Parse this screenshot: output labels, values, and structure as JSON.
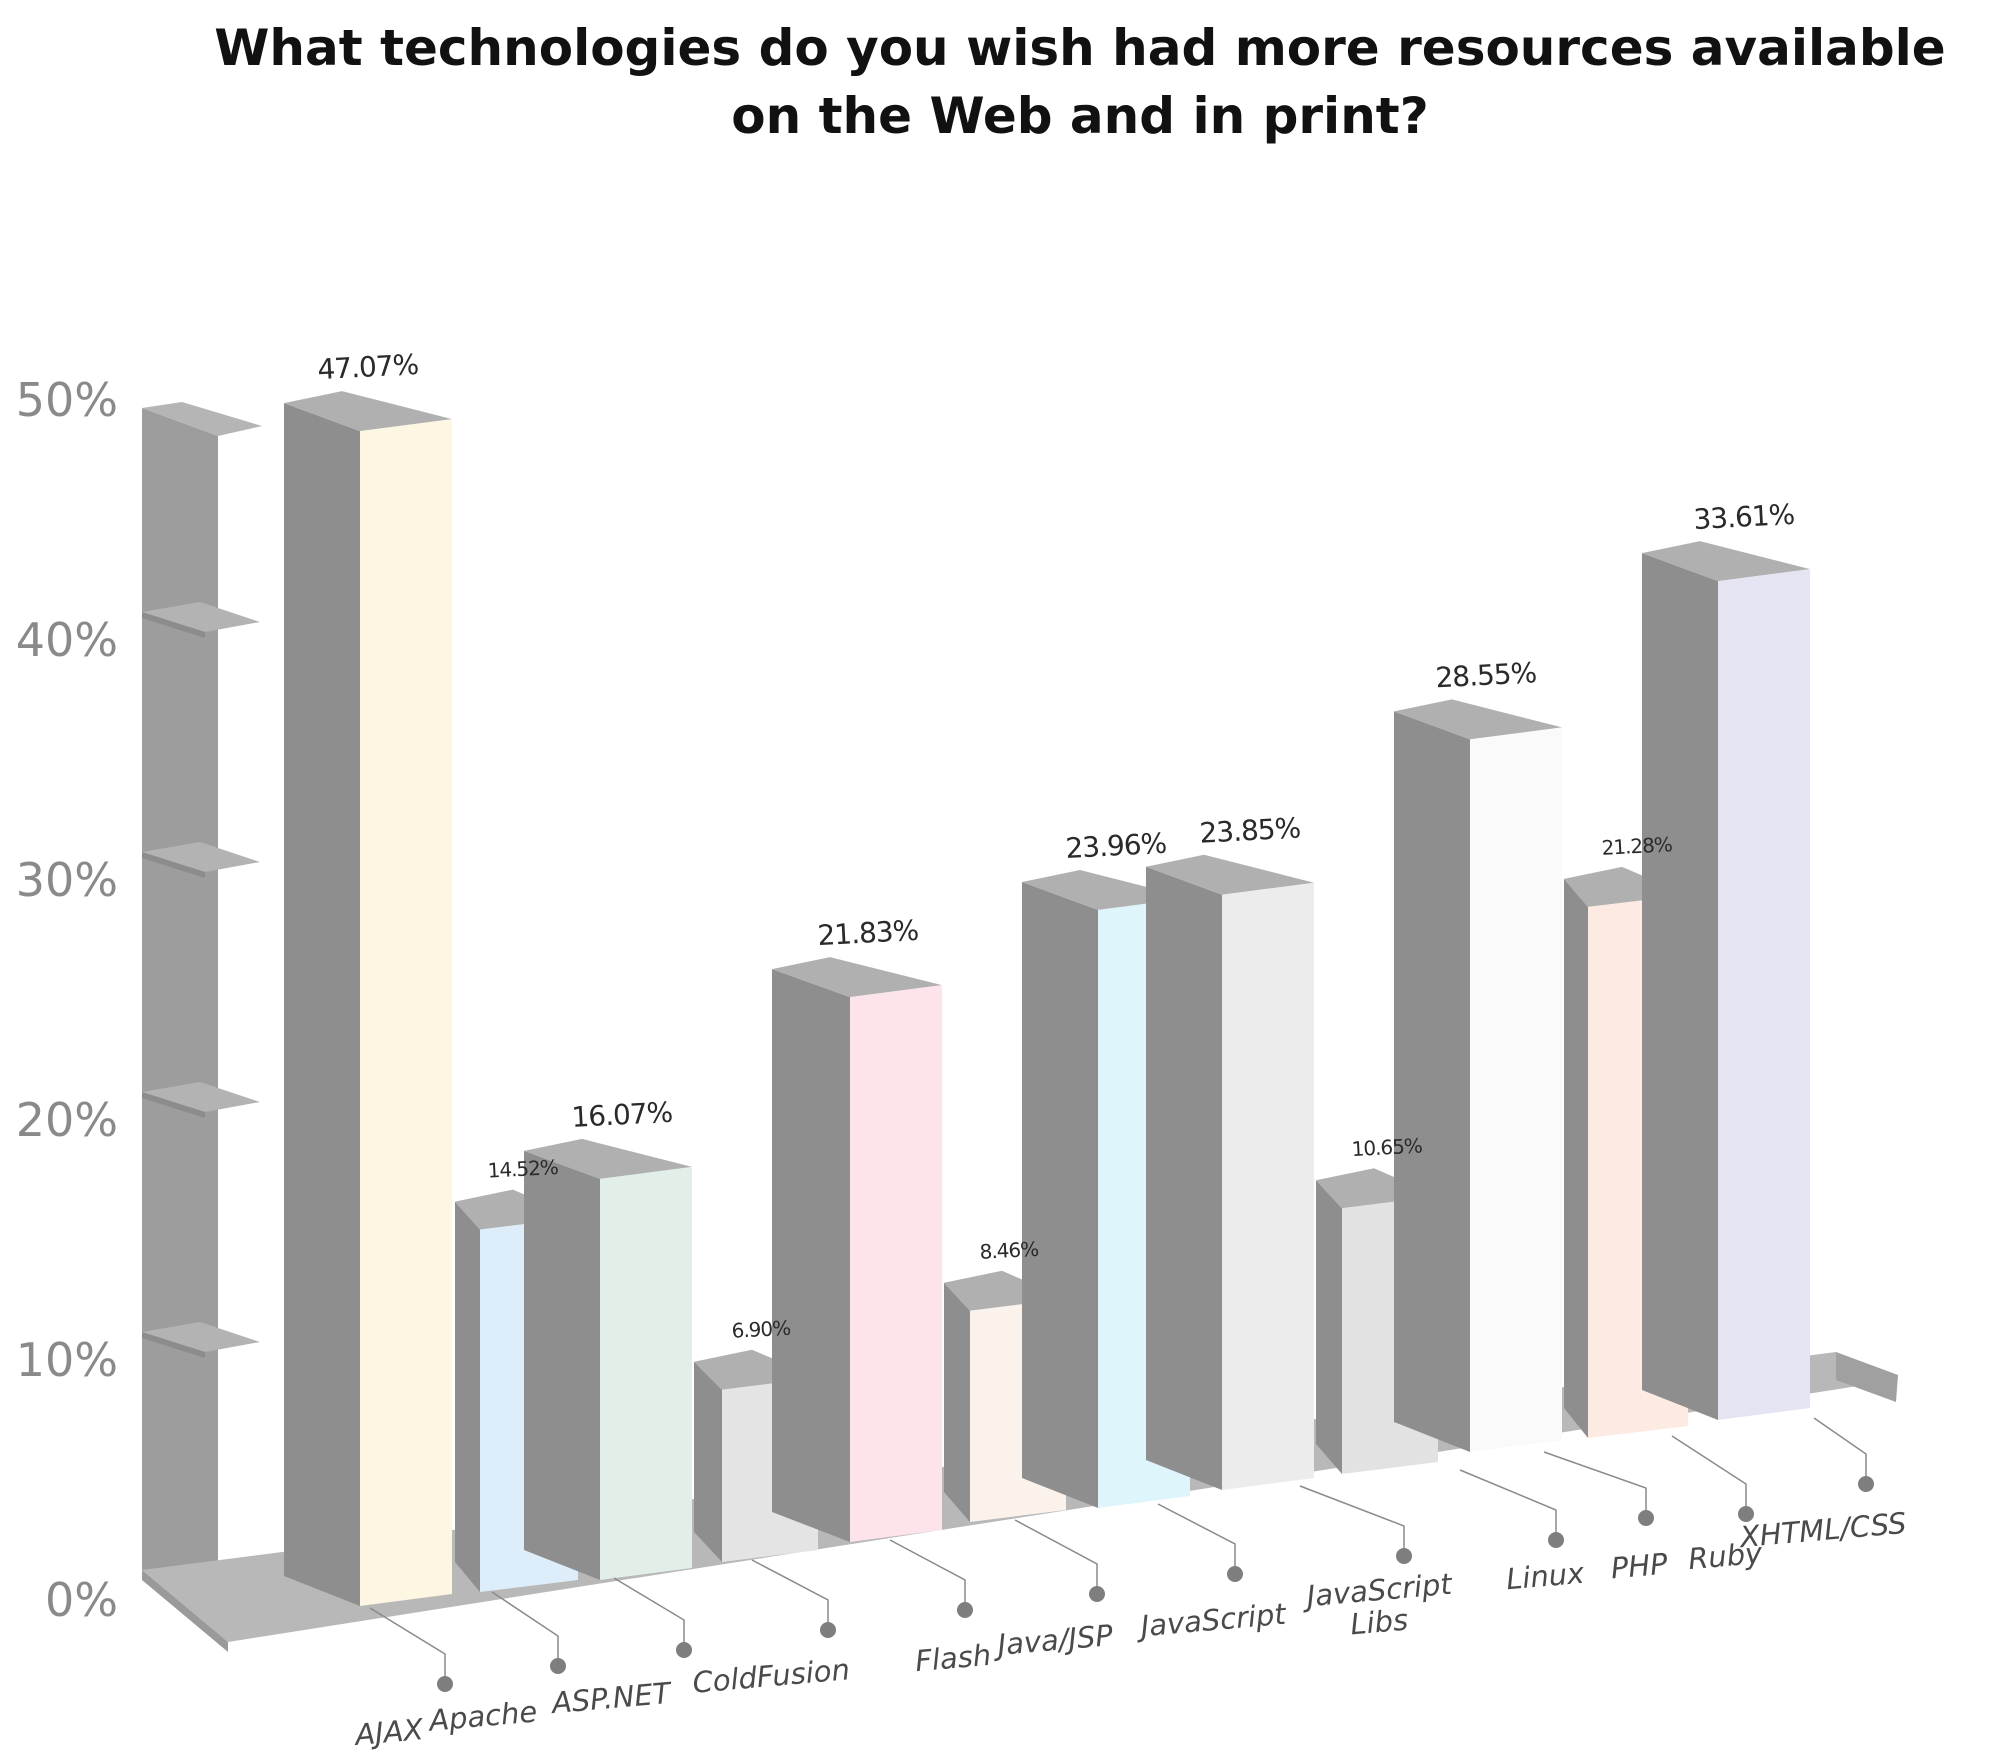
{
  "chart_data": {
    "type": "bar",
    "title": [
      "What technologies do you wish had more resources available",
      "on the Web and in print?"
    ],
    "xlabel": "",
    "ylabel": "",
    "ylim": [
      0,
      50
    ],
    "yticks": [
      "0%",
      "10%",
      "20%",
      "30%",
      "40%",
      "50%"
    ],
    "grid": false,
    "legend": "none",
    "categories": [
      "AJAX",
      "Apache",
      "ASP.NET",
      "ColdFusion",
      "Flash",
      "Java/JSP",
      "JavaScript",
      "JavaScript Libs",
      "Linux",
      "PHP",
      "Ruby",
      "XHTML/CSS"
    ],
    "category_labels": [
      [
        "AJAX"
      ],
      [
        "Apache"
      ],
      [
        "ASP.NET"
      ],
      [
        "ColdFusion"
      ],
      [
        "Flash"
      ],
      [
        "Java/JSP"
      ],
      [
        "JavaScript"
      ],
      [
        "JavaScript",
        "Libs"
      ],
      [
        "Linux"
      ],
      [
        "PHP"
      ],
      [
        "Ruby"
      ],
      [
        "XHTML/CSS"
      ]
    ],
    "values": [
      47.07,
      14.52,
      16.07,
      6.9,
      21.83,
      8.46,
      23.96,
      23.85,
      10.65,
      28.55,
      21.28,
      33.61
    ],
    "value_labels": [
      "47.07%",
      "14.52%",
      "16.07%",
      "6.90%",
      "21.83%",
      "8.46%",
      "23.96%",
      "23.85%",
      "10.65%",
      "28.55%",
      "21.28%",
      "33.61%"
    ],
    "colors": [
      "#fdf6e3",
      "#ddeefa",
      "#e1efe8",
      "#e4e4e4",
      "#fde4ea",
      "#fbf2ec",
      "#dff5fc",
      "#ececec",
      "#e2e2e2",
      "#fafafa",
      "#fdeae3",
      "#e4e4f3"
    ]
  }
}
